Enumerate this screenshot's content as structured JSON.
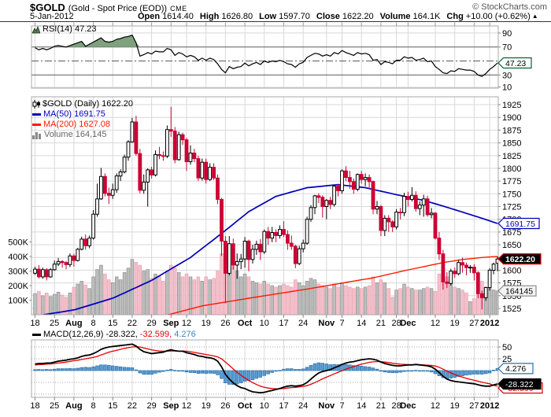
{
  "header": {
    "symbol": "$GOLD",
    "description": "(Gold - Spot Price (EOD))",
    "exchange": "CME",
    "copyright": "© StockCharts.com",
    "date": "5-Jan-2012",
    "open_label": "Open",
    "open": "1614.40",
    "high_label": "High",
    "high": "1626.80",
    "low_label": "Low",
    "low": "1597.70",
    "close_label": "Close",
    "close": "1622.20",
    "volume_label": "Volume",
    "volume": "164.1K",
    "chg_label": "Chg",
    "chg": "+10.00 (+0.62%)",
    "chg_arrow": "▲"
  },
  "rsi_legend": {
    "label": "RSI(14) 47.23"
  },
  "legend": {
    "symbol_line": "$GOLD (Daily) 1622.20",
    "ma50_line": "MA(50) 1691.75",
    "ma200_line": "MA(200) 1627.08",
    "volume_line": "Volume 164,145"
  },
  "macd_legend": {
    "prefix": "MACD(12,26,9) -28.322,",
    "signal": "-32.599,",
    "hist": "4.276"
  },
  "palette": {
    "up_candle": "#000000",
    "up_fill": "#ffffff",
    "down_candle": "#cc0033",
    "vol_up": "#bdbdbd",
    "vol_up_edge": "#8f8f8f",
    "vol_down": "#f5bfca",
    "vol_down_edge": "#e9a2b2",
    "ma50": "#0000bb",
    "ma200": "#ff1a00",
    "rsi_fill": "#7ea17e",
    "rsi_line": "#000000",
    "macd_line": "#000000",
    "signal_line": "#e60000",
    "hist_fill": "#5b9bd0",
    "hist_edge": "#2572ae",
    "hist_text": "#3d85c6",
    "vol_text": "#666666",
    "grid": "#d8d8d8",
    "grid_dark": "#5a5a5a",
    "frame": "#a8a8a8",
    "tag_green": "#006633",
    "tag_blue": "#0000bb",
    "tag_red": "#dd0000",
    "tag_gray": "#888888"
  },
  "chart_data": {
    "type": "candlestick",
    "title": "$GOLD Daily candlesticks with RSI(14), MA(50), MA(200), Volume and MACD(12,26,9)",
    "price_axis": {
      "ticks": [
        1925,
        1900,
        1875,
        1850,
        1825,
        1800,
        1775,
        1750,
        1725,
        1700,
        1675,
        1650,
        1625,
        1600,
        1575,
        1550,
        1525
      ]
    },
    "volume_axis": {
      "ticks_k": [
        500,
        400,
        300,
        200,
        100
      ]
    },
    "rsi_axis": {
      "ticks": [
        90,
        70,
        30,
        10
      ],
      "overbought": 70,
      "oversold": 30,
      "mid": 50
    },
    "macd_axis": {
      "ticks": [
        50,
        25
      ],
      "grid": [
        50,
        25,
        0,
        -25,
        -50
      ]
    },
    "x_labels": [
      {
        "i": 0,
        "t": "18"
      },
      {
        "i": 5,
        "t": "25"
      },
      {
        "i": 10,
        "t": "Aug",
        "b": 1
      },
      {
        "i": 15,
        "t": "8"
      },
      {
        "i": 20,
        "t": "15"
      },
      {
        "i": 25,
        "t": "22"
      },
      {
        "i": 30,
        "t": "29"
      },
      {
        "i": 35,
        "t": "Sep",
        "b": 1
      },
      {
        "i": 39,
        "t": "12"
      },
      {
        "i": 44,
        "t": "19"
      },
      {
        "i": 49,
        "t": "26"
      },
      {
        "i": 54,
        "t": "Oct",
        "b": 1
      },
      {
        "i": 59,
        "t": "10"
      },
      {
        "i": 64,
        "t": "17"
      },
      {
        "i": 69,
        "t": "24"
      },
      {
        "i": 75,
        "t": "Nov",
        "b": 1
      },
      {
        "i": 79,
        "t": "7"
      },
      {
        "i": 84,
        "t": "14"
      },
      {
        "i": 89,
        "t": "21"
      },
      {
        "i": 93,
        "t": "28"
      },
      {
        "i": 96,
        "t": "Dec",
        "b": 1
      },
      {
        "i": 103,
        "t": "12"
      },
      {
        "i": 108,
        "t": "19"
      },
      {
        "i": 113,
        "t": "27"
      },
      {
        "i": 117,
        "t": "2012",
        "b": 1
      }
    ],
    "candles_ohlc": [
      [
        1594,
        1607,
        1591,
        1602
      ],
      [
        1602,
        1610,
        1584,
        1587
      ],
      [
        1587,
        1605,
        1583,
        1601
      ],
      [
        1601,
        1604,
        1580,
        1587
      ],
      [
        1587,
        1604,
        1585,
        1601
      ],
      [
        1601,
        1619,
        1599,
        1612
      ],
      [
        1612,
        1624,
        1608,
        1617
      ],
      [
        1617,
        1620,
        1605,
        1615
      ],
      [
        1615,
        1618,
        1602,
        1611
      ],
      [
        1611,
        1633,
        1606,
        1628
      ],
      [
        1628,
        1632,
        1607,
        1619
      ],
      [
        1619,
        1644,
        1617,
        1641
      ],
      [
        1641,
        1666,
        1639,
        1661
      ],
      [
        1661,
        1670,
        1640,
        1648
      ],
      [
        1648,
        1668,
        1643,
        1663
      ],
      [
        1663,
        1718,
        1660,
        1710
      ],
      [
        1710,
        1770,
        1705,
        1740
      ],
      [
        1740,
        1801,
        1738,
        1784
      ],
      [
        1784,
        1790,
        1745,
        1751
      ],
      [
        1751,
        1762,
        1730,
        1747
      ],
      [
        1747,
        1770,
        1740,
        1758
      ],
      [
        1758,
        1790,
        1752,
        1785
      ],
      [
        1785,
        1798,
        1775,
        1793
      ],
      [
        1793,
        1827,
        1790,
        1822
      ],
      [
        1822,
        1855,
        1815,
        1852
      ],
      [
        1852,
        1899,
        1850,
        1891
      ],
      [
        1891,
        1903,
        1825,
        1829
      ],
      [
        1829,
        1838,
        1751,
        1757
      ],
      [
        1757,
        1788,
        1750,
        1773
      ],
      [
        1773,
        1800,
        1725,
        1797
      ],
      [
        1797,
        1803,
        1780,
        1787
      ],
      [
        1787,
        1835,
        1784,
        1827
      ],
      [
        1827,
        1842,
        1818,
        1825
      ],
      [
        1825,
        1833,
        1815,
        1824
      ],
      [
        1824,
        1884,
        1820,
        1876
      ],
      [
        1876,
        1921,
        1862,
        1873
      ],
      [
        1873,
        1881,
        1810,
        1817
      ],
      [
        1817,
        1872,
        1815,
        1866
      ],
      [
        1866,
        1870,
        1846,
        1856
      ],
      [
        1856,
        1860,
        1795,
        1813
      ],
      [
        1813,
        1845,
        1807,
        1830
      ],
      [
        1830,
        1838,
        1812,
        1819
      ],
      [
        1819,
        1825,
        1775,
        1781
      ],
      [
        1781,
        1819,
        1776,
        1812
      ],
      [
        1812,
        1819,
        1770,
        1778
      ],
      [
        1778,
        1810,
        1775,
        1802
      ],
      [
        1802,
        1810,
        1777,
        1781
      ],
      [
        1781,
        1788,
        1730,
        1739
      ],
      [
        1739,
        1742,
        1628,
        1657
      ],
      [
        1657,
        1667,
        1535,
        1594
      ],
      [
        1594,
        1667,
        1590,
        1652
      ],
      [
        1652,
        1662,
        1601,
        1610
      ],
      [
        1610,
        1633,
        1583,
        1617
      ],
      [
        1617,
        1632,
        1602,
        1622
      ],
      [
        1622,
        1665,
        1605,
        1657
      ],
      [
        1657,
        1660,
        1598,
        1621
      ],
      [
        1621,
        1650,
        1613,
        1641
      ],
      [
        1641,
        1658,
        1630,
        1651
      ],
      [
        1651,
        1661,
        1620,
        1636
      ],
      [
        1636,
        1680,
        1632,
        1676
      ],
      [
        1676,
        1685,
        1650,
        1663
      ],
      [
        1663,
        1685,
        1655,
        1674
      ],
      [
        1674,
        1680,
        1655,
        1668
      ],
      [
        1668,
        1688,
        1662,
        1680
      ],
      [
        1680,
        1696,
        1665,
        1670
      ],
      [
        1670,
        1678,
        1640,
        1653
      ],
      [
        1653,
        1668,
        1640,
        1647
      ],
      [
        1647,
        1650,
        1604,
        1613
      ],
      [
        1613,
        1648,
        1610,
        1642
      ],
      [
        1642,
        1660,
        1635,
        1653
      ],
      [
        1653,
        1705,
        1650,
        1700
      ],
      [
        1700,
        1728,
        1695,
        1723
      ],
      [
        1723,
        1748,
        1710,
        1746
      ],
      [
        1746,
        1751,
        1732,
        1743
      ],
      [
        1743,
        1747,
        1703,
        1725
      ],
      [
        1725,
        1740,
        1700,
        1737
      ],
      [
        1737,
        1744,
        1720,
        1729
      ],
      [
        1729,
        1768,
        1725,
        1765
      ],
      [
        1765,
        1770,
        1745,
        1756
      ],
      [
        1756,
        1798,
        1750,
        1795
      ],
      [
        1795,
        1804,
        1775,
        1782
      ],
      [
        1782,
        1795,
        1760,
        1774
      ],
      [
        1774,
        1780,
        1750,
        1759
      ],
      [
        1759,
        1790,
        1755,
        1788
      ],
      [
        1788,
        1795,
        1770,
        1778
      ],
      [
        1778,
        1790,
        1765,
        1782
      ],
      [
        1782,
        1788,
        1760,
        1774
      ],
      [
        1774,
        1776,
        1710,
        1720
      ],
      [
        1720,
        1736,
        1710,
        1725
      ],
      [
        1725,
        1728,
        1667,
        1678
      ],
      [
        1678,
        1708,
        1667,
        1702
      ],
      [
        1702,
        1708,
        1675,
        1695
      ],
      [
        1695,
        1698,
        1675,
        1685
      ],
      [
        1685,
        1720,
        1680,
        1714
      ],
      [
        1714,
        1722,
        1700,
        1713
      ],
      [
        1713,
        1752,
        1706,
        1745
      ],
      [
        1745,
        1754,
        1725,
        1739
      ],
      [
        1739,
        1763,
        1735,
        1747
      ],
      [
        1747,
        1755,
        1715,
        1721
      ],
      [
        1721,
        1735,
        1708,
        1728
      ],
      [
        1728,
        1748,
        1705,
        1740
      ],
      [
        1740,
        1746,
        1705,
        1709
      ],
      [
        1709,
        1722,
        1702,
        1712
      ],
      [
        1712,
        1714,
        1660,
        1663
      ],
      [
        1663,
        1675,
        1620,
        1632
      ],
      [
        1632,
        1640,
        1562,
        1577
      ],
      [
        1577,
        1596,
        1565,
        1574
      ],
      [
        1574,
        1603,
        1570,
        1598
      ],
      [
        1598,
        1605,
        1585,
        1593
      ],
      [
        1593,
        1620,
        1590,
        1615
      ],
      [
        1615,
        1625,
        1595,
        1610
      ],
      [
        1610,
        1615,
        1590,
        1605
      ],
      [
        1605,
        1610,
        1595,
        1606
      ],
      [
        1606,
        1612,
        1580,
        1595
      ],
      [
        1595,
        1598,
        1545,
        1554
      ],
      [
        1554,
        1560,
        1523,
        1546
      ],
      [
        1546,
        1568,
        1540,
        1566
      ],
      [
        1566,
        1604,
        1560,
        1600
      ],
      [
        1600,
        1615,
        1592,
        1612
      ],
      [
        1614,
        1627,
        1598,
        1622
      ]
    ],
    "volumes_k": [
      145,
      160,
      130,
      150,
      125,
      140,
      155,
      135,
      120,
      150,
      190,
      210,
      230,
      205,
      180,
      260,
      310,
      340,
      280,
      240,
      220,
      260,
      240,
      290,
      320,
      380,
      360,
      340,
      300,
      310,
      250,
      280,
      260,
      230,
      300,
      340,
      320,
      290,
      260,
      280,
      260,
      240,
      260,
      230,
      260,
      240,
      250,
      300,
      420,
      450,
      380,
      330,
      300,
      260,
      280,
      260,
      230,
      220,
      210,
      230,
      210,
      200,
      190,
      200,
      210,
      200,
      190,
      240,
      220,
      200,
      230,
      250,
      240,
      210,
      200,
      190,
      180,
      210,
      190,
      220,
      200,
      190,
      180,
      190,
      180,
      190,
      200,
      260,
      220,
      240,
      220,
      180,
      120,
      170,
      180,
      210,
      190,
      180,
      170,
      170,
      180,
      190,
      180,
      160,
      280,
      320,
      260,
      220,
      190,
      180,
      170,
      150,
      90,
      110,
      200,
      230,
      180,
      190,
      170,
      164
    ],
    "rsi": [
      69,
      66,
      68,
      66,
      68,
      71,
      72,
      71,
      70,
      72,
      74,
      76,
      78,
      71,
      74,
      77,
      80,
      83,
      78,
      77,
      78,
      81,
      82,
      84,
      85,
      87,
      76,
      57,
      59,
      62,
      60,
      64,
      63,
      63,
      68,
      66,
      58,
      62,
      60,
      56,
      58,
      56,
      51,
      54,
      51,
      54,
      52,
      46,
      38,
      33,
      42,
      39,
      41,
      42,
      47,
      43,
      46,
      48,
      45,
      50,
      48,
      50,
      49,
      51,
      49,
      46,
      45,
      41,
      46,
      48,
      55,
      58,
      61,
      60,
      57,
      59,
      57,
      62,
      60,
      65,
      62,
      60,
      58,
      62,
      60,
      61,
      59,
      51,
      52,
      45,
      49,
      48,
      46,
      51,
      51,
      56,
      54,
      55,
      51,
      52,
      54,
      49,
      50,
      42,
      38,
      33,
      32,
      36,
      35,
      39,
      38,
      37,
      37,
      35,
      30,
      28,
      32,
      38,
      42,
      47.23
    ],
    "macd": [
      14,
      15,
      15,
      16,
      16,
      18,
      20,
      21,
      22,
      24,
      25,
      27,
      30,
      32,
      33,
      36,
      40,
      45,
      48,
      50,
      51,
      52,
      53,
      54,
      55,
      56,
      52,
      45,
      40,
      38,
      36,
      37,
      38,
      39,
      42,
      44,
      42,
      41,
      41,
      38,
      36,
      34,
      31,
      30,
      28,
      27,
      25,
      20,
      8,
      -8,
      -18,
      -26,
      -32,
      -36,
      -38,
      -42,
      -45,
      -46,
      -47,
      -46,
      -44,
      -42,
      -40,
      -38,
      -35,
      -33,
      -32,
      -33,
      -32,
      -30,
      -25,
      -18,
      -11,
      -5,
      -2,
      0,
      2,
      6,
      9,
      13,
      16,
      18,
      19,
      21,
      23,
      24,
      25,
      24,
      22,
      18,
      15,
      13,
      11,
      10,
      10,
      11,
      12,
      12,
      13,
      12,
      11,
      10,
      8,
      3,
      -4,
      -12,
      -18,
      -21,
      -23,
      -24,
      -25,
      -26,
      -27,
      -28,
      -30,
      -32,
      -33,
      -33,
      -30.5,
      -28.322
    ],
    "macd_signal": [
      12,
      12.5,
      13,
      13.5,
      14,
      15,
      16,
      17,
      18,
      19.5,
      21,
      22,
      23.5,
      25,
      26.5,
      28,
      30,
      33,
      36,
      39,
      41,
      43,
      45,
      47,
      48.5,
      50,
      50.5,
      50,
      48,
      46,
      44,
      42.5,
      41.5,
      41,
      41,
      41.5,
      41.5,
      41.5,
      41.5,
      41,
      40,
      38.5,
      37,
      35.5,
      34,
      32.5,
      31,
      29,
      25,
      18,
      11,
      3.5,
      -3.5,
      -10,
      -15.5,
      -21,
      -25.5,
      -29.5,
      -33,
      -35.5,
      -37,
      -38,
      -38.5,
      -38.5,
      -38,
      -37,
      -36,
      -35.5,
      -34.5,
      -33.5,
      -32,
      -29,
      -25.5,
      -21.5,
      -17.5,
      -14,
      -10.5,
      -7,
      -3.5,
      -0.5,
      3,
      6,
      8.5,
      11,
      13.5,
      15.5,
      17.5,
      18.5,
      19,
      19,
      18,
      17,
      15.5,
      14.5,
      13.5,
      13,
      12.5,
      12.5,
      12.5,
      12.5,
      12,
      11.5,
      11,
      9.5,
      7,
      3,
      -1,
      -5,
      -8.5,
      -11.5,
      -14,
      -16.5,
      -18.5,
      -20.5,
      -22.5,
      -24.5,
      -26.5,
      -28,
      -31.5,
      -32.599
    ],
    "ma50_points": [
      [
        0,
        1510
      ],
      [
        10,
        1522
      ],
      [
        20,
        1545
      ],
      [
        30,
        1580
      ],
      [
        40,
        1625
      ],
      [
        48,
        1672
      ],
      [
        55,
        1715
      ],
      [
        62,
        1745
      ],
      [
        70,
        1762
      ],
      [
        78,
        1768
      ],
      [
        85,
        1762
      ],
      [
        92,
        1750
      ],
      [
        100,
        1737
      ],
      [
        105,
        1726
      ],
      [
        110,
        1714
      ],
      [
        115,
        1702
      ],
      [
        119,
        1691.75
      ]
    ],
    "ma200_points": [
      [
        0,
        1468
      ],
      [
        15,
        1486
      ],
      [
        30,
        1504
      ],
      [
        43,
        1530
      ],
      [
        55,
        1545
      ],
      [
        70,
        1563
      ],
      [
        80,
        1576
      ],
      [
        87,
        1585
      ],
      [
        95,
        1599
      ],
      [
        100,
        1607
      ],
      [
        105,
        1615
      ],
      [
        110,
        1621
      ],
      [
        115,
        1625
      ],
      [
        119,
        1627.08
      ]
    ],
    "last_values": {
      "close": "1622.20",
      "ma50": "1691.75",
      "ma200": "1627.08",
      "volume_tag": "164145",
      "rsi": "47.23",
      "macd": "-28.322",
      "signal": "-32.599",
      "hist": "4.276"
    }
  }
}
